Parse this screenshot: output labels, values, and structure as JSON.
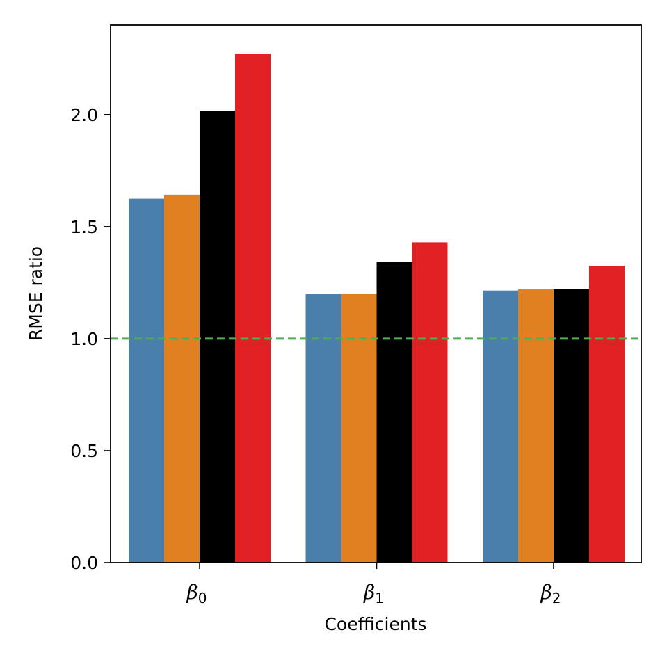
{
  "chart_data": {
    "type": "bar",
    "xlabel": "Coefficients",
    "ylabel": "RMSE ratio",
    "categories": [
      {
        "base": "β",
        "sub": "0"
      },
      {
        "base": "β",
        "sub": "1"
      },
      {
        "base": "β",
        "sub": "2"
      }
    ],
    "series": [
      {
        "color": "#4a7eab",
        "values": [
          1.625,
          1.2,
          1.215
        ]
      },
      {
        "color": "#e08020",
        "values": [
          1.643,
          1.2,
          1.22
        ]
      },
      {
        "color": "#000000",
        "values": [
          2.018,
          1.342,
          1.222
        ]
      },
      {
        "color": "#e02023",
        "values": [
          2.272,
          1.43,
          1.325
        ]
      }
    ],
    "ylim": [
      0,
      2.4
    ],
    "yticks": [
      "0.0",
      "0.5",
      "1.0",
      "1.5",
      "2.0"
    ],
    "reference_line": {
      "value": 1.0,
      "color": "#4caf50",
      "style": "dashed"
    },
    "grid": false,
    "legend": "none"
  }
}
